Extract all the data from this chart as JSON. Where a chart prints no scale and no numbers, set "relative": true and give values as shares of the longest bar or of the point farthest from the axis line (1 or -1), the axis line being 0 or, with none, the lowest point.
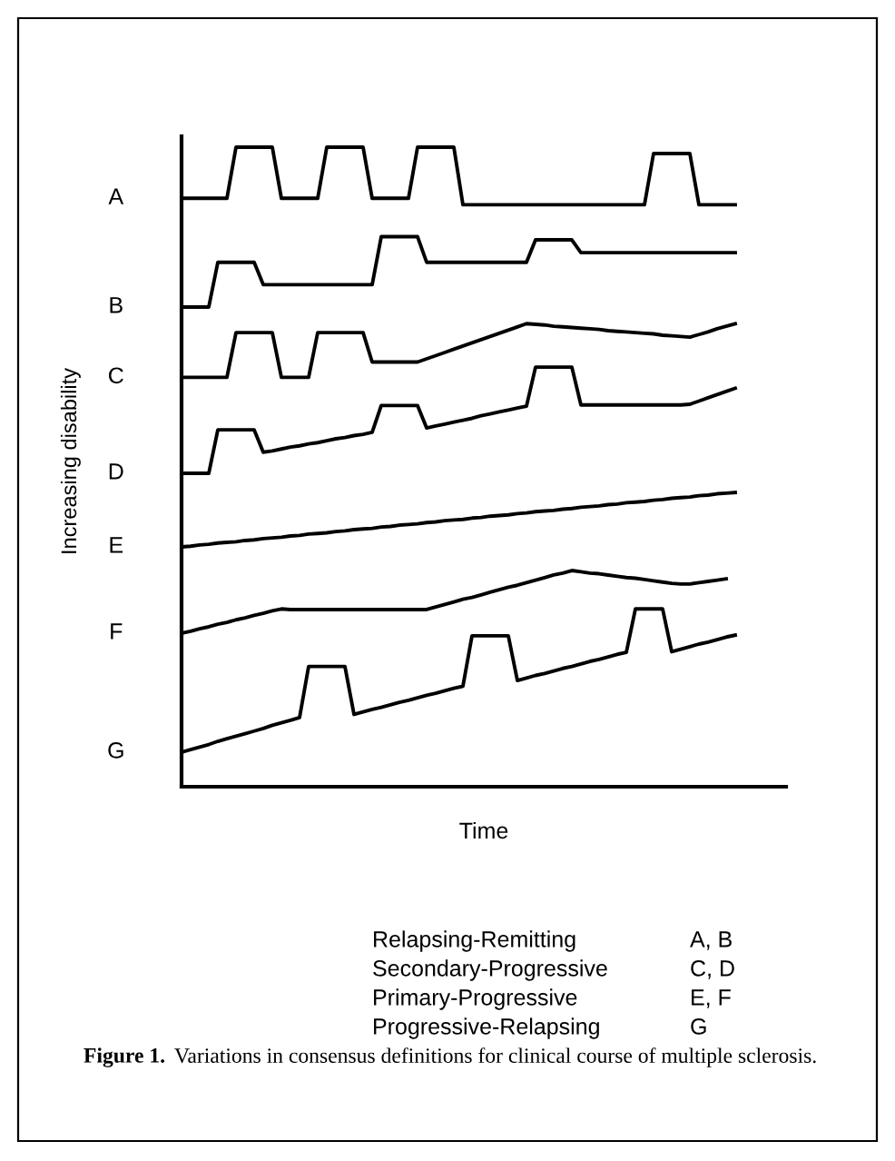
{
  "chart_data": {
    "type": "line",
    "relative": true,
    "xlabel": "Time",
    "ylabel": "Increasing disability",
    "legend": false,
    "marker": "none",
    "line_style": "solid",
    "categories": [
      null,
      null,
      null,
      null,
      null,
      null,
      null,
      null,
      null,
      null,
      null,
      null,
      null,
      null,
      null,
      null,
      null,
      null,
      null,
      null,
      null,
      null,
      null,
      null,
      null,
      null,
      null,
      null,
      null,
      null,
      null,
      null,
      null,
      null,
      null,
      null,
      null,
      null,
      null,
      null,
      null,
      null,
      null,
      null,
      null,
      null,
      null,
      null,
      null,
      null,
      null,
      null,
      null,
      null,
      null,
      null,
      null,
      null,
      null,
      null,
      null,
      null
    ],
    "series": [
      {
        "name": "A",
        "color": "#000000",
        "values": [
          0.92,
          0.92,
          0.92,
          0.92,
          0.92,
          0.92,
          1.0,
          1.0,
          1.0,
          1.0,
          1.0,
          0.92,
          0.92,
          0.92,
          0.92,
          0.92,
          1.0,
          1.0,
          1.0,
          1.0,
          1.0,
          0.92,
          0.92,
          0.92,
          0.92,
          0.92,
          1.0,
          1.0,
          1.0,
          1.0,
          1.0,
          0.91,
          0.91,
          0.91,
          0.91,
          0.91,
          0.91,
          0.91,
          0.91,
          0.91,
          0.91,
          0.91,
          0.91,
          0.91,
          0.91,
          0.91,
          0.91,
          0.91,
          0.91,
          0.91,
          0.91,
          0.91,
          0.99,
          0.99,
          0.99,
          0.99,
          0.99,
          0.91,
          0.91,
          0.91,
          0.91,
          0.91
        ]
      },
      {
        "name": "B",
        "color": "#000000",
        "values": [
          0.75,
          0.75,
          0.75,
          0.75,
          0.82,
          0.82,
          0.82,
          0.82,
          0.82,
          0.785,
          0.785,
          0.785,
          0.785,
          0.785,
          0.785,
          0.785,
          0.785,
          0.785,
          0.785,
          0.785,
          0.785,
          0.785,
          0.86,
          0.86,
          0.86,
          0.86,
          0.86,
          0.82,
          0.82,
          0.82,
          0.82,
          0.82,
          0.82,
          0.82,
          0.82,
          0.82,
          0.82,
          0.82,
          0.82,
          0.855,
          0.855,
          0.855,
          0.855,
          0.855,
          0.835,
          0.835,
          0.835,
          0.835,
          0.835,
          0.835,
          0.835,
          0.835,
          0.835,
          0.835,
          0.835,
          0.835,
          0.835,
          0.835,
          0.835,
          0.835,
          0.835,
          0.835
        ]
      },
      {
        "name": "C",
        "color": "#000000",
        "values": [
          0.64,
          0.64,
          0.64,
          0.64,
          0.64,
          0.64,
          0.71,
          0.71,
          0.71,
          0.71,
          0.71,
          0.64,
          0.64,
          0.64,
          0.64,
          0.71,
          0.71,
          0.71,
          0.71,
          0.71,
          0.71,
          0.664,
          0.664,
          0.664,
          0.664,
          0.664,
          0.664,
          0.669,
          0.674,
          0.679,
          0.684,
          0.689,
          0.694,
          0.699,
          0.704,
          0.709,
          0.714,
          0.719,
          0.724,
          0.723,
          0.722,
          0.72,
          0.719,
          0.718,
          0.717,
          0.716,
          0.715,
          0.713,
          0.712,
          0.711,
          0.71,
          0.709,
          0.708,
          0.706,
          0.705,
          0.704,
          0.703,
          0.707,
          0.711,
          0.716,
          0.72,
          0.724
        ]
      },
      {
        "name": "D",
        "color": "#000000",
        "values": [
          0.49,
          0.49,
          0.49,
          0.49,
          0.558,
          0.558,
          0.558,
          0.558,
          0.558,
          0.523,
          0.525,
          0.528,
          0.531,
          0.533,
          0.536,
          0.538,
          0.541,
          0.544,
          0.546,
          0.549,
          0.551,
          0.554,
          0.596,
          0.596,
          0.596,
          0.596,
          0.596,
          0.561,
          0.564,
          0.567,
          0.57,
          0.573,
          0.576,
          0.58,
          0.583,
          0.586,
          0.589,
          0.592,
          0.595,
          0.656,
          0.656,
          0.656,
          0.656,
          0.656,
          0.597,
          0.597,
          0.597,
          0.597,
          0.597,
          0.597,
          0.597,
          0.597,
          0.597,
          0.597,
          0.597,
          0.597,
          0.598,
          0.603,
          0.608,
          0.613,
          0.618,
          0.623
        ]
      },
      {
        "name": "E",
        "color": "#000000",
        "values": [
          0.375,
          0.376,
          0.378,
          0.379,
          0.381,
          0.382,
          0.383,
          0.385,
          0.386,
          0.388,
          0.389,
          0.39,
          0.392,
          0.393,
          0.395,
          0.396,
          0.397,
          0.399,
          0.4,
          0.402,
          0.403,
          0.404,
          0.406,
          0.407,
          0.409,
          0.41,
          0.411,
          0.413,
          0.414,
          0.416,
          0.417,
          0.418,
          0.42,
          0.421,
          0.423,
          0.424,
          0.425,
          0.427,
          0.428,
          0.43,
          0.431,
          0.432,
          0.434,
          0.435,
          0.437,
          0.438,
          0.439,
          0.441,
          0.442,
          0.444,
          0.445,
          0.446,
          0.448,
          0.449,
          0.451,
          0.452,
          0.453,
          0.455,
          0.456,
          0.458,
          0.459,
          0.46
        ]
      },
      {
        "name": "F",
        "color": "#000000",
        "values": [
          0.24,
          0.243,
          0.247,
          0.25,
          0.254,
          0.257,
          0.261,
          0.264,
          0.268,
          0.271,
          0.275,
          0.278,
          0.277,
          0.277,
          0.277,
          0.277,
          0.277,
          0.277,
          0.277,
          0.277,
          0.277,
          0.277,
          0.277,
          0.277,
          0.277,
          0.277,
          0.277,
          0.277,
          0.281,
          0.285,
          0.289,
          0.293,
          0.296,
          0.3,
          0.304,
          0.308,
          0.312,
          0.315,
          0.319,
          0.323,
          0.327,
          0.331,
          0.334,
          0.338,
          0.336,
          0.334,
          0.333,
          0.331,
          0.329,
          0.327,
          0.326,
          0.324,
          0.322,
          0.32,
          0.318,
          0.317,
          0.317,
          0.319,
          0.321,
          0.323,
          0.325,
          null
        ]
      },
      {
        "name": "G",
        "color": "#000000",
        "values": [
          0.054,
          0.058,
          0.062,
          0.066,
          0.071,
          0.075,
          0.079,
          0.083,
          0.087,
          0.091,
          0.096,
          0.1,
          0.104,
          0.108,
          0.188,
          0.188,
          0.188,
          0.188,
          0.188,
          0.113,
          0.117,
          0.121,
          0.124,
          0.128,
          0.132,
          0.135,
          0.139,
          0.143,
          0.146,
          0.15,
          0.154,
          0.157,
          0.236,
          0.236,
          0.236,
          0.236,
          0.236,
          0.166,
          0.17,
          0.174,
          0.177,
          0.181,
          0.185,
          0.188,
          0.192,
          0.196,
          0.199,
          0.203,
          0.207,
          0.21,
          0.278,
          0.278,
          0.278,
          0.278,
          0.211,
          0.215,
          0.219,
          0.223,
          0.226,
          0.23,
          0.234,
          0.237
        ]
      }
    ],
    "annotations": [
      "Relapsing-Remitting",
      "A, B",
      "Secondary-Progressive",
      "C, D",
      "Primary-Progressive",
      "E, F",
      "Progressive-Relapsing",
      "G",
      "Figure 1.",
      "Variations in consensus definitions for clinical course of multiple sclerosis."
    ]
  }
}
